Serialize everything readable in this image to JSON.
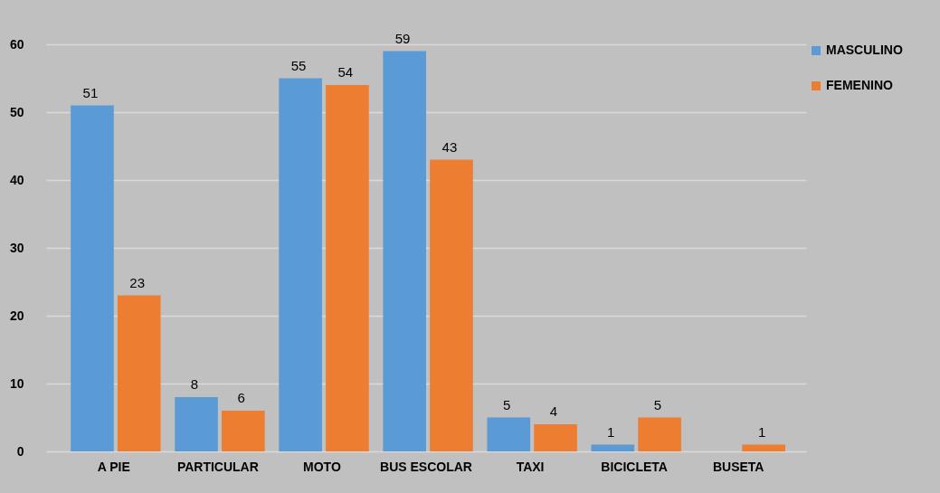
{
  "chart_data": {
    "type": "bar",
    "categories": [
      "A PIE",
      "PARTICULAR",
      "MOTO",
      "BUS ESCOLAR",
      "TAXI",
      "BICICLETA",
      "BUSETA"
    ],
    "series": [
      {
        "name": "MASCULINO",
        "color": "#5b9bd5",
        "values": [
          51,
          8,
          55,
          59,
          5,
          1,
          null
        ],
        "value_labels": [
          "51",
          "8",
          "55",
          "59",
          "5",
          "1",
          null
        ]
      },
      {
        "name": "FEMENINO",
        "color": "#ed7d31",
        "values": [
          23,
          6,
          54,
          43,
          4,
          5,
          1
        ],
        "value_labels": [
          "23",
          "6",
          "54",
          "43",
          "4",
          "5",
          "1"
        ]
      }
    ],
    "ylim": [
      0,
      60
    ],
    "yticks": [
      0,
      10,
      20,
      30,
      40,
      50,
      60
    ],
    "grid": "y",
    "legend": "right"
  }
}
